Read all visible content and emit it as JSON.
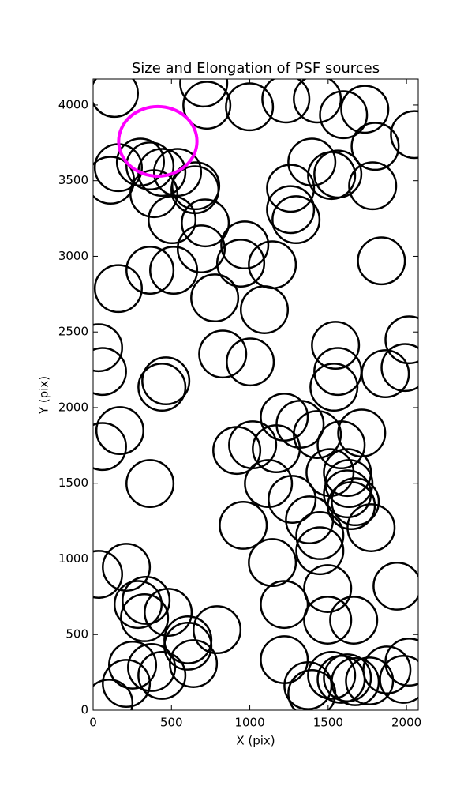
{
  "chart_data": {
    "type": "ellipse",
    "title": "Size and Elongation of PSF sources",
    "xlabel": "X (pix)",
    "ylabel": "Y (pix)",
    "xlim": [
      0,
      2075
    ],
    "ylim": [
      0,
      4172
    ],
    "xticks": [
      0,
      500,
      1000,
      1500,
      2000
    ],
    "yticks": [
      0,
      500,
      1000,
      1500,
      2000,
      2500,
      3000,
      3500,
      4000
    ],
    "series": [
      {
        "color": "#000000",
        "linewidth": 2.5,
        "width": 300,
        "height": 310,
        "x": [
          136,
          706,
          726,
          998,
          1230,
          1431,
          1598,
          1734,
          1800,
          2051,
          111,
          161,
          302,
          363,
          439,
          539,
          655,
          650,
          388,
          504,
          716,
          690,
          363,
          514,
          161,
          942,
          968,
          1144,
          1260,
          1260,
          1295,
          1396,
          1522,
          1562,
          1784,
          1840,
          776,
          1093,
          827,
          1003,
          35,
          60,
          464,
          439,
          171,
          60,
          363,
          917,
          1018,
          1169,
          1220,
          1321,
          1431,
          1583,
          1714,
          1547,
          1562,
          1537,
          1865,
          2016,
          1991,
          1119,
          1270,
          1381,
          1447,
          1447,
          1512,
          1623,
          1633,
          1623,
          1673,
          1648,
          1774,
          958,
          1144,
          1220,
          1497,
          1663,
          1497,
          1940,
          35,
          212,
          287,
          338,
          328,
          479,
          605,
          605,
          640,
          791,
          252,
          212,
          101,
          439,
          373,
          1220,
          1371,
          1396,
          1522,
          1583,
          1623,
          1673,
          1764,
          1875,
          2016,
          1981
        ],
        "y": [
          4077,
          4145,
          3999,
          3988,
          4040,
          4040,
          3936,
          3972,
          3727,
          3805,
          3503,
          3586,
          3623,
          3597,
          3555,
          3555,
          3466,
          3440,
          3414,
          3242,
          3221,
          3049,
          2908,
          2908,
          2787,
          2955,
          3075,
          2944,
          3309,
          3450,
          3242,
          3623,
          3534,
          3544,
          3466,
          2970,
          2725,
          2647,
          2354,
          2302,
          2396,
          2239,
          2177,
          2135,
          1848,
          1743,
          1498,
          1717,
          1754,
          1728,
          1937,
          1890,
          1822,
          1754,
          1832,
          2412,
          2239,
          2135,
          2224,
          2448,
          2265,
          1498,
          1394,
          1258,
          1154,
          1054,
          1571,
          1571,
          1498,
          1430,
          1378,
          1352,
          1206,
          1222,
          976,
          699,
          804,
          595,
          595,
          820,
          898,
          945,
          699,
          726,
          611,
          647,
          465,
          423,
          308,
          532,
          298,
          177,
          47,
          230,
          282,
          334,
          162,
          110,
          230,
          204,
          214,
          188,
          193,
          266,
          318,
          204
        ]
      },
      {
        "color": "#ff00ff",
        "linewidth": 4,
        "width": 500,
        "height": 460,
        "x": [
          413
        ],
        "y": [
          3760
        ]
      }
    ]
  }
}
